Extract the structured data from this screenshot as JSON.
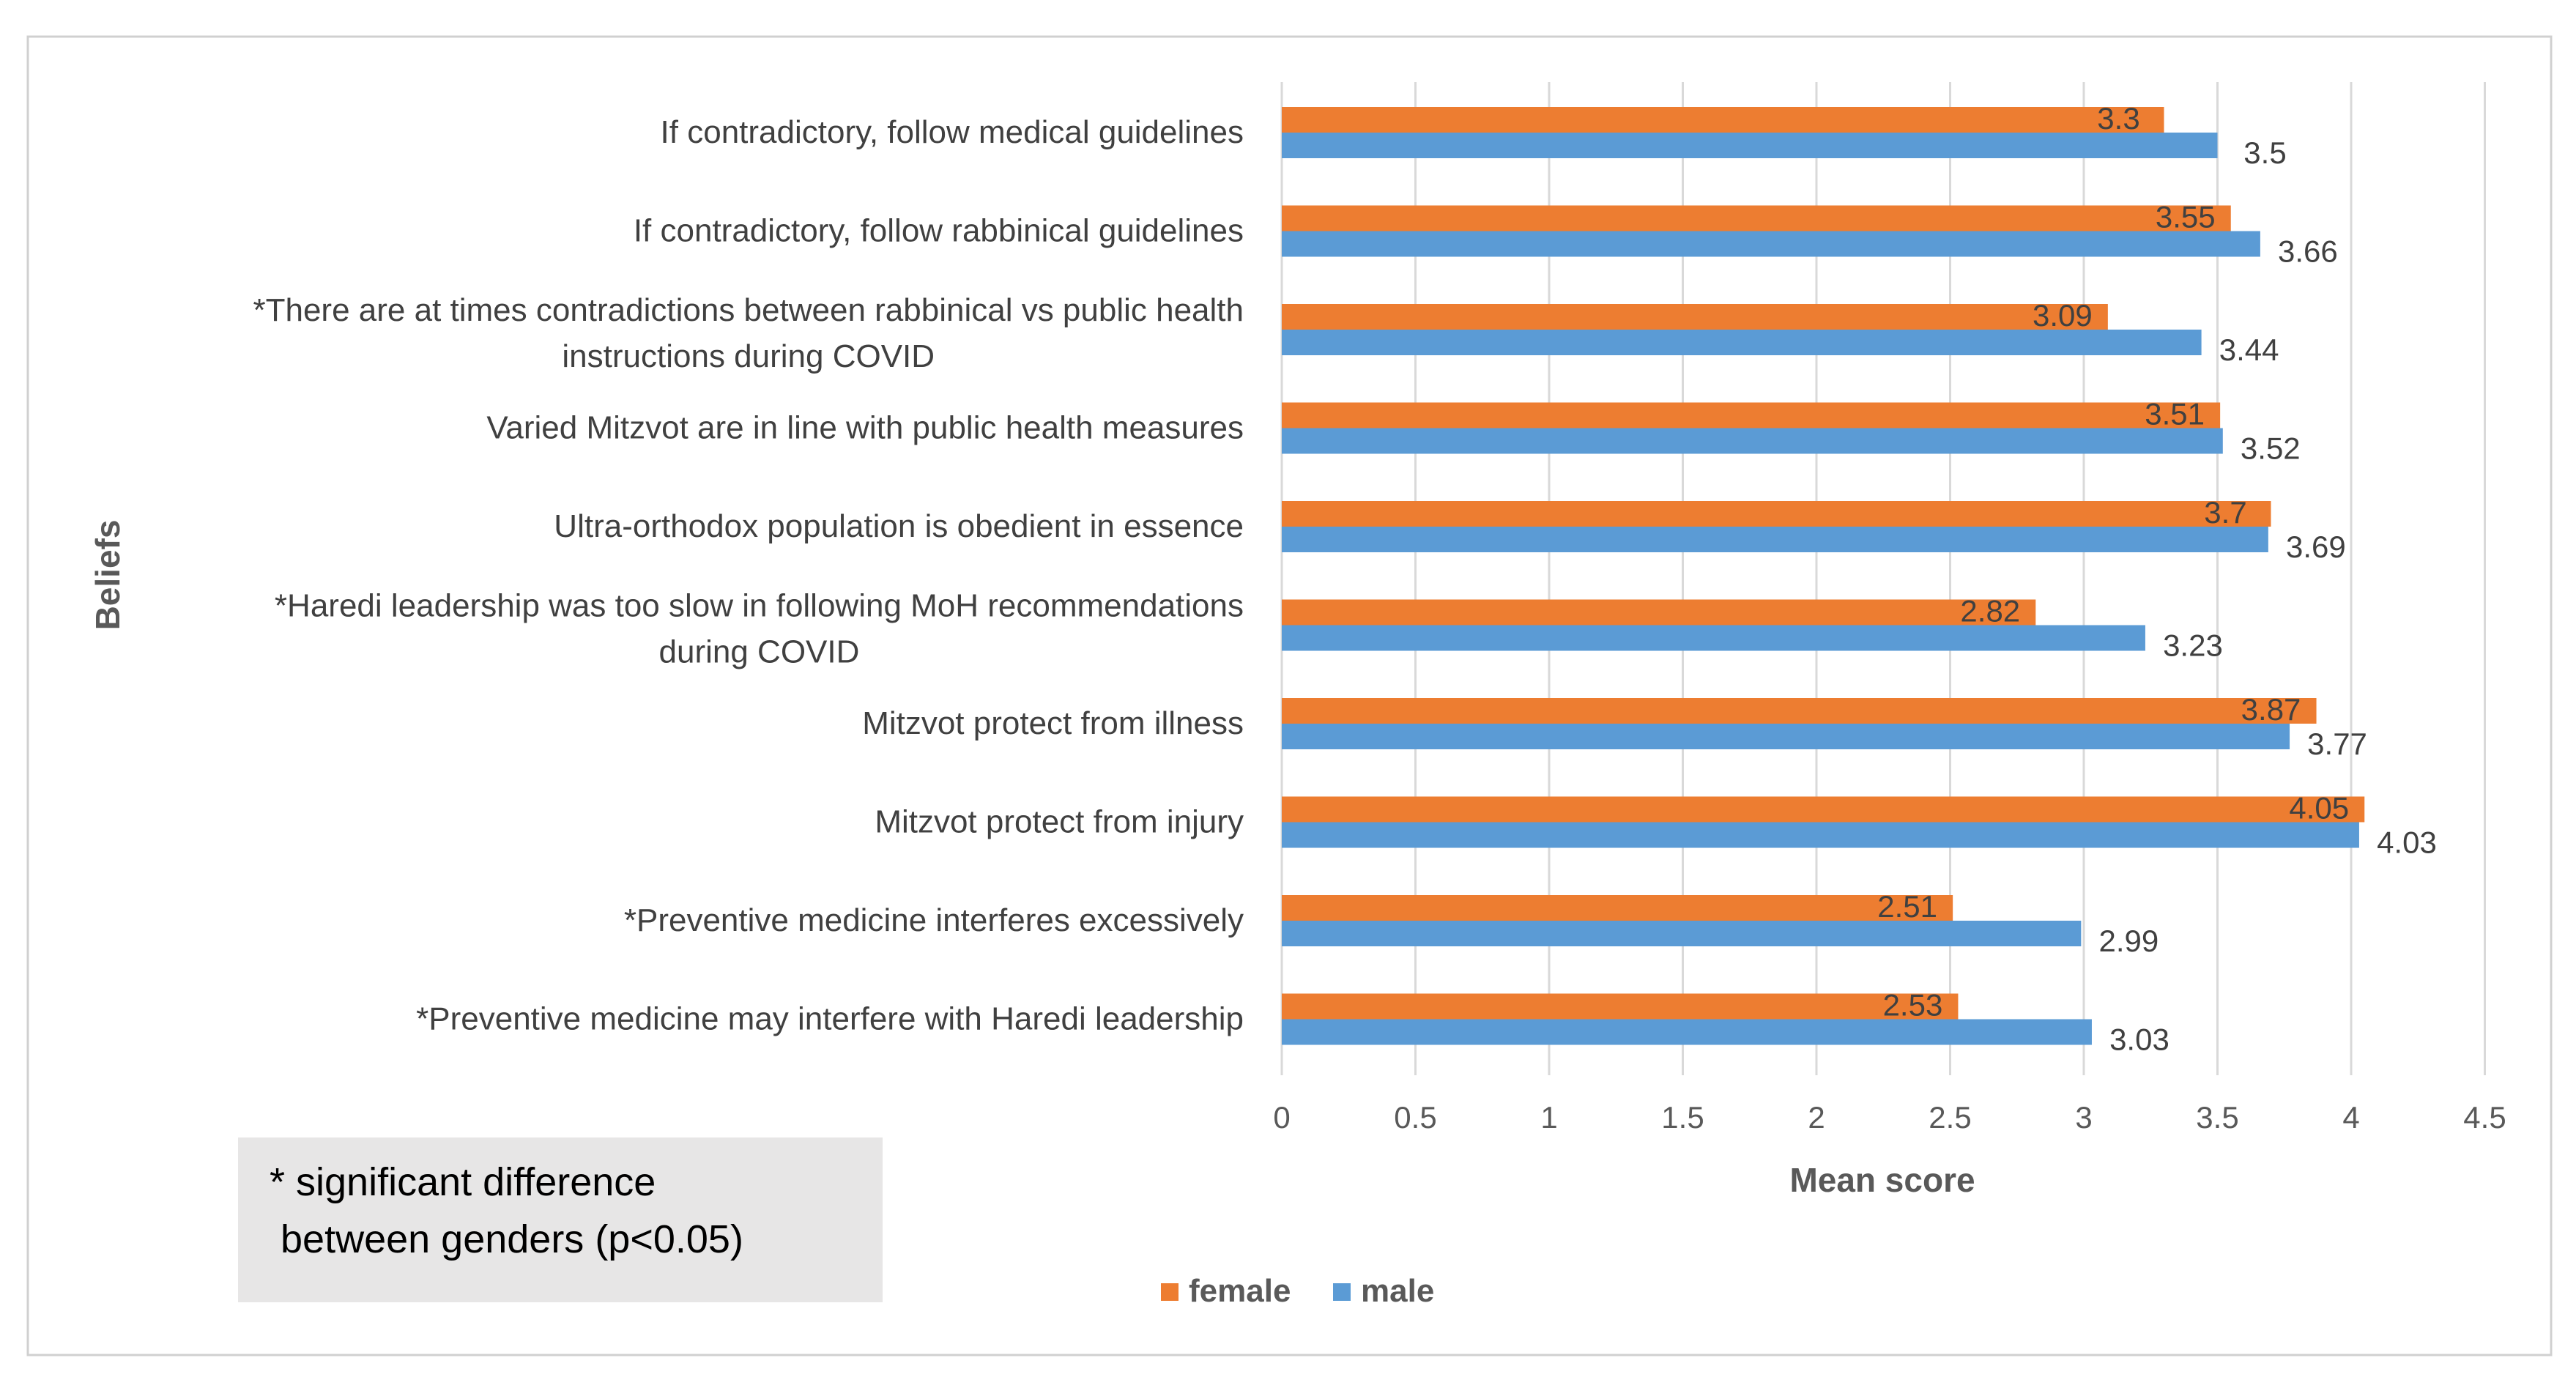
{
  "chart_data": {
    "type": "bar",
    "orientation": "horizontal",
    "categories": [
      "If contradictory, follow medical guidelines",
      "If contradictory, follow rabbinical guidelines",
      "*There are at times contradictions between rabbinical vs public health instructions during COVID",
      "Varied Mitzvot are in line with public health measures",
      "Ultra-orthodox population is obedient in essence",
      "*Haredi leadership was too slow in following MoH recommendations during COVID",
      "Mitzvot protect from illness",
      "Mitzvot protect from injury",
      "*Preventive medicine  interferes excessively",
      "*Preventive medicine may interfere with Haredi leadership"
    ],
    "category_lines": [
      [
        "If contradictory, follow medical guidelines"
      ],
      [
        "If contradictory, follow rabbinical guidelines"
      ],
      [
        "*There are at times contradictions between rabbinical vs public health",
        "instructions during COVID"
      ],
      [
        "Varied Mitzvot are in line with public health measures"
      ],
      [
        "Ultra-orthodox population is obedient in essence"
      ],
      [
        "*Haredi leadership was too slow in following MoH recommendations",
        "during COVID"
      ],
      [
        "Mitzvot protect from illness"
      ],
      [
        "Mitzvot protect from injury"
      ],
      [
        "*Preventive medicine  interferes excessively"
      ],
      [
        "*Preventive medicine may interfere with Haredi leadership"
      ]
    ],
    "series": [
      {
        "name": "female",
        "color": "#ED7D31",
        "values": [
          3.3,
          3.55,
          3.09,
          3.51,
          3.7,
          2.82,
          3.87,
          4.05,
          2.51,
          2.53
        ],
        "labels": [
          "3.3",
          "3.55",
          "3.09",
          "3.51",
          "3.7",
          "2.82",
          "3.87",
          "4.05",
          "2.51",
          "2.53"
        ]
      },
      {
        "name": "male",
        "color": "#5B9BD5",
        "values": [
          3.5,
          3.66,
          3.44,
          3.52,
          3.69,
          3.23,
          3.77,
          4.03,
          2.99,
          3.03
        ],
        "labels": [
          "3.5",
          "3.66",
          "3.44",
          "3.52",
          "3.69",
          "3.23",
          "3.77",
          "4.03",
          "2.99",
          "3.03"
        ]
      }
    ],
    "xlim": [
      0,
      4.5
    ],
    "xticks": [
      "0",
      "0.5",
      "1",
      "1.5",
      "2",
      "2.5",
      "3",
      "3.5",
      "4",
      "4.5"
    ],
    "xlabel": "Mean score",
    "ylabel": "Beliefs",
    "grid": "vertical",
    "legend": "bottom"
  },
  "note": {
    "line1": "* significant difference",
    "line2": " between genders (p<0.05)"
  }
}
